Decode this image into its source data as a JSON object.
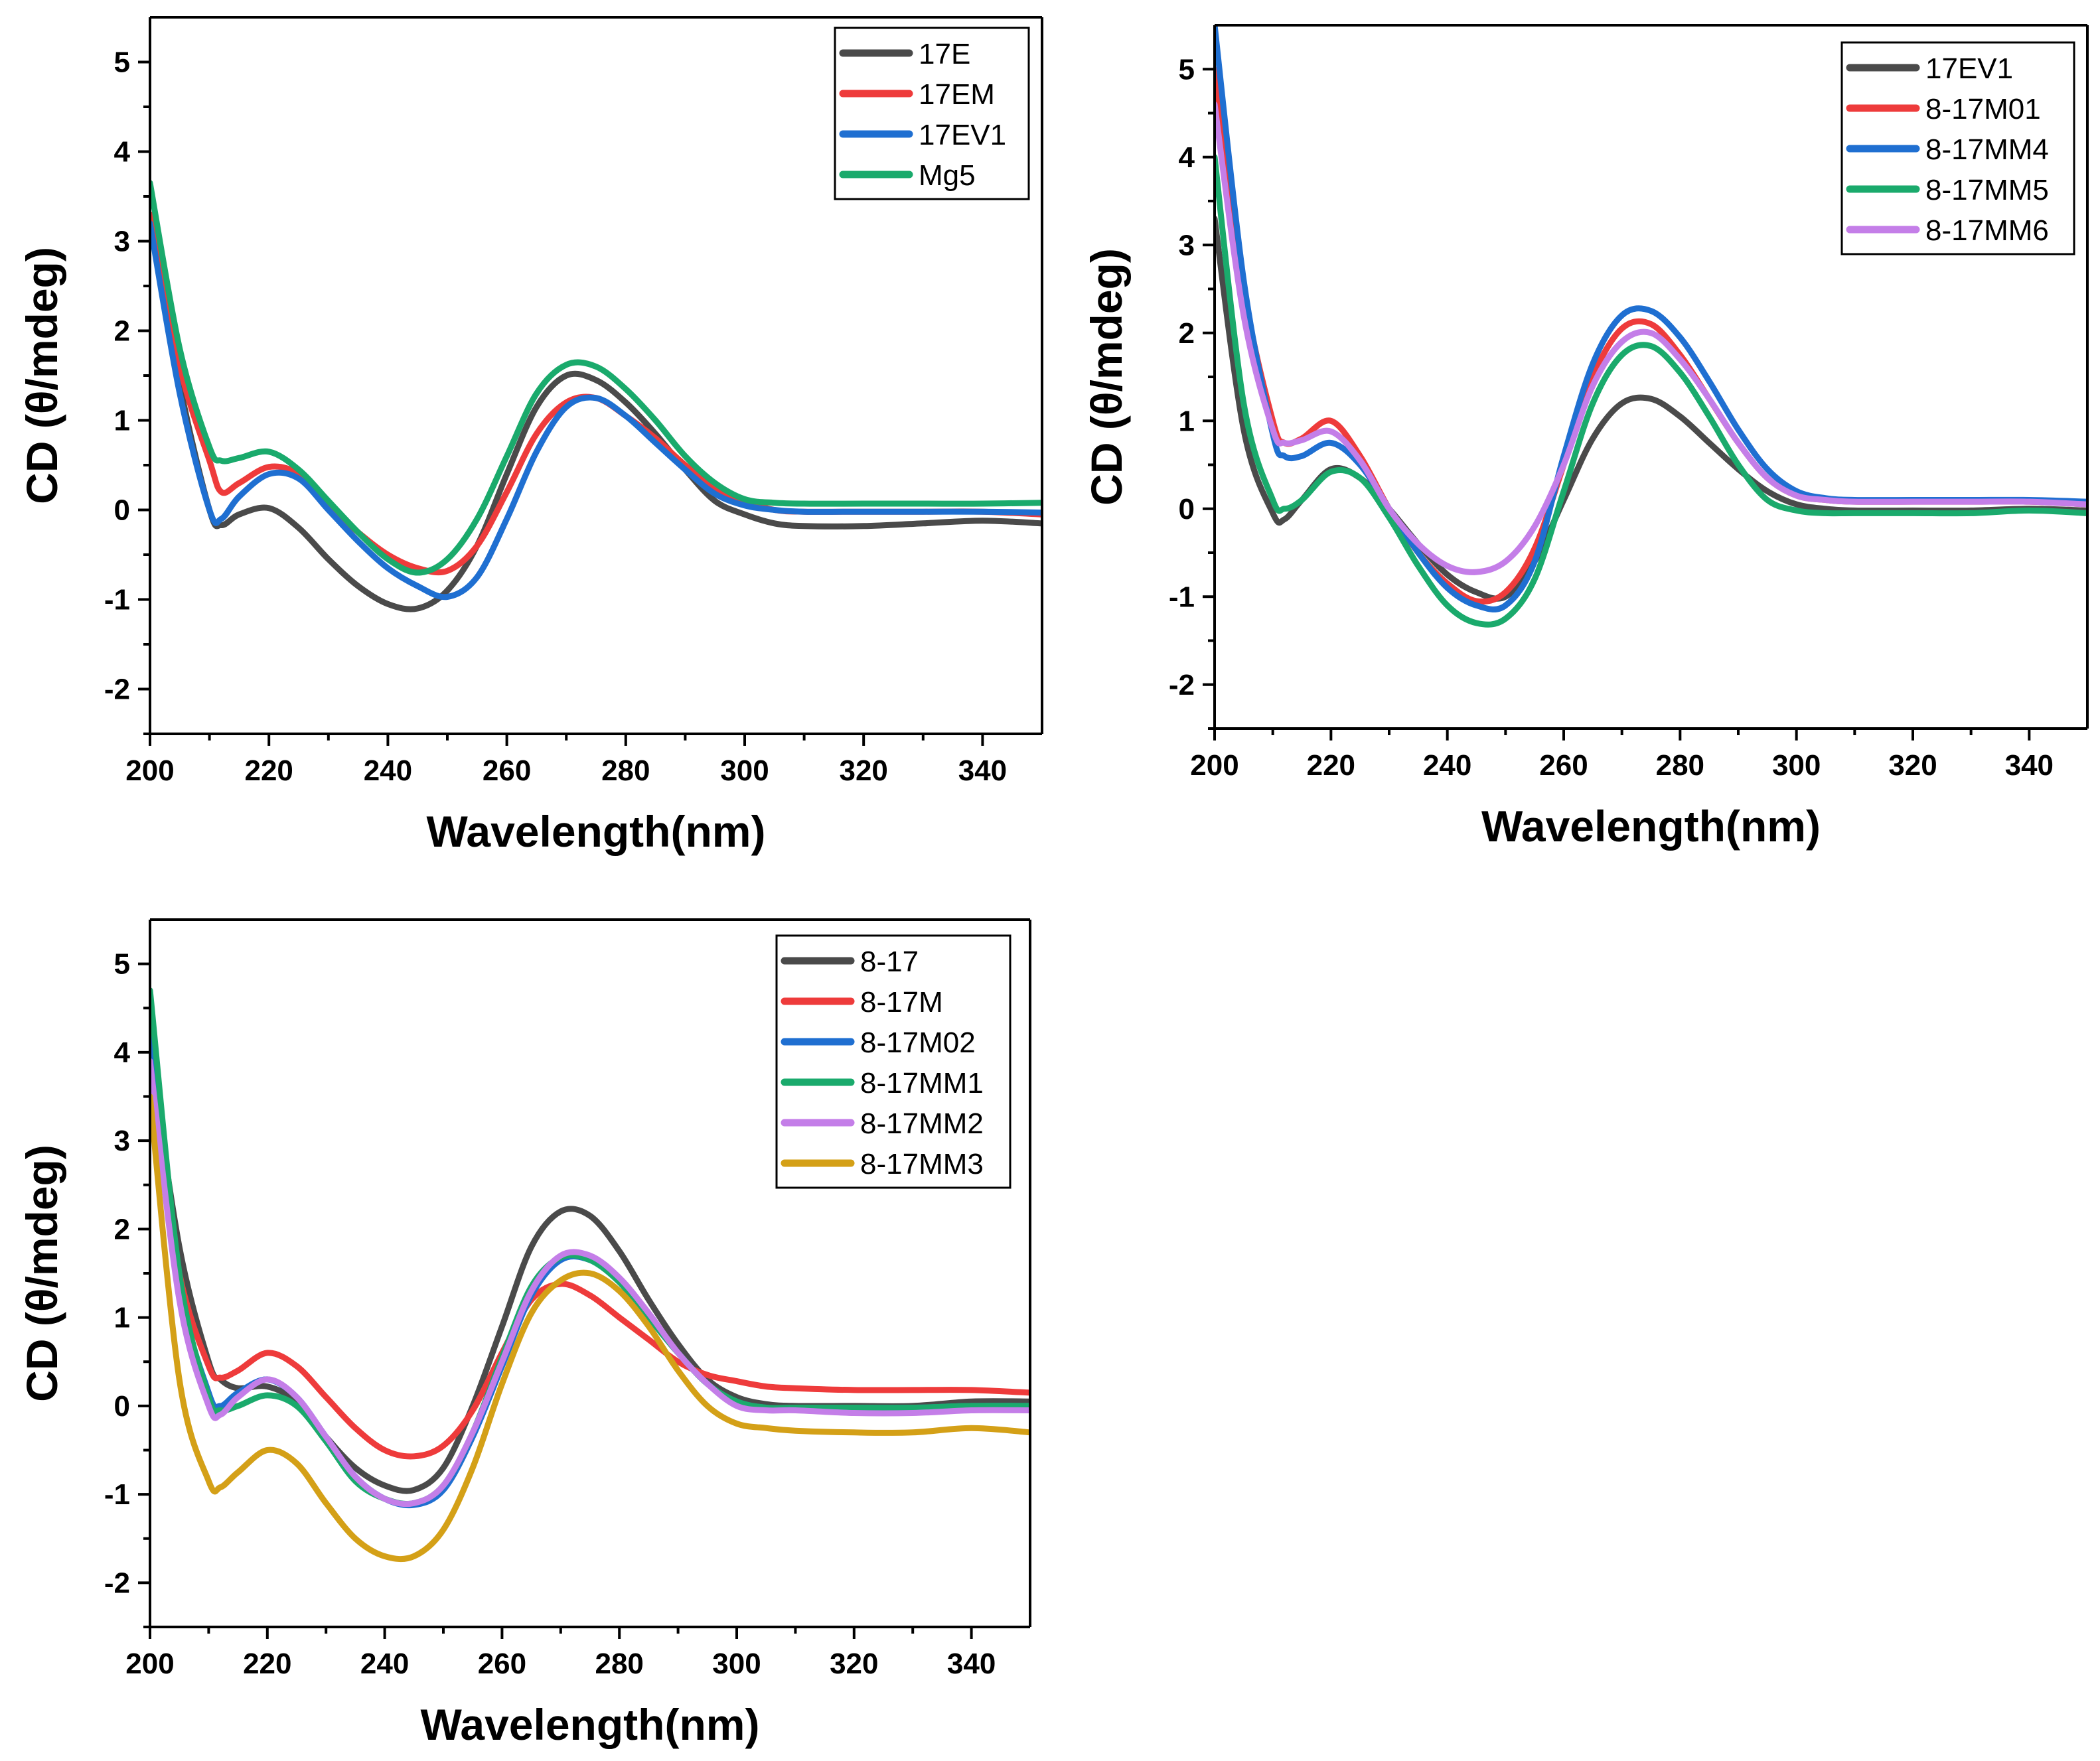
{
  "chart_data": [
    {
      "type": "line",
      "title": "",
      "xlabel": "Wavelength(nm)",
      "ylabel": "CD (θ/mdeg)",
      "xlim": [
        200,
        350
      ],
      "ylim": [
        -2.5,
        5.5
      ],
      "xticks": [
        200,
        220,
        240,
        260,
        280,
        300,
        320,
        340
      ],
      "yticks": [
        -2,
        -1,
        0,
        1,
        2,
        3,
        4,
        5
      ],
      "legend_position": "top-right",
      "x": [
        200,
        205,
        210,
        212,
        215,
        220,
        225,
        230,
        235,
        240,
        245,
        250,
        255,
        260,
        265,
        270,
        275,
        280,
        285,
        290,
        295,
        300,
        305,
        310,
        320,
        330,
        340,
        350
      ],
      "series": [
        {
          "name": "17E",
          "color": "#4a4a4a",
          "values": [
            3.3,
            1.4,
            0.0,
            -0.17,
            -0.05,
            0.02,
            -0.2,
            -0.55,
            -0.85,
            -1.05,
            -1.1,
            -0.9,
            -0.4,
            0.4,
            1.15,
            1.5,
            1.45,
            1.2,
            0.85,
            0.45,
            0.1,
            -0.05,
            -0.15,
            -0.18,
            -0.18,
            -0.15,
            -0.12,
            -0.15
          ]
        },
        {
          "name": "17EM",
          "color": "#ee3b3b",
          "values": [
            3.3,
            1.6,
            0.55,
            0.2,
            0.3,
            0.48,
            0.4,
            0.05,
            -0.25,
            -0.5,
            -0.65,
            -0.68,
            -0.4,
            0.2,
            0.85,
            1.2,
            1.25,
            1.05,
            0.8,
            0.5,
            0.25,
            0.1,
            0.0,
            -0.02,
            -0.02,
            -0.02,
            -0.02,
            -0.05
          ]
        },
        {
          "name": "17EV1",
          "color": "#1f6fd1",
          "values": [
            3.2,
            1.3,
            0.0,
            -0.1,
            0.15,
            0.4,
            0.35,
            0.0,
            -0.35,
            -0.65,
            -0.85,
            -0.97,
            -0.75,
            -0.1,
            0.65,
            1.15,
            1.25,
            1.05,
            0.75,
            0.45,
            0.18,
            0.05,
            0.0,
            -0.02,
            -0.02,
            -0.02,
            -0.02,
            -0.03
          ]
        },
        {
          "name": "Mg5",
          "color": "#1aaa6c",
          "values": [
            3.65,
            1.8,
            0.7,
            0.55,
            0.58,
            0.65,
            0.45,
            0.1,
            -0.25,
            -0.55,
            -0.7,
            -0.55,
            -0.1,
            0.6,
            1.3,
            1.62,
            1.6,
            1.35,
            1.0,
            0.6,
            0.3,
            0.12,
            0.08,
            0.07,
            0.07,
            0.07,
            0.07,
            0.08
          ]
        }
      ]
    },
    {
      "type": "line",
      "title": "",
      "xlabel": "Wavelength(nm)",
      "ylabel": "CD (θ/mdeg)",
      "xlim": [
        200,
        350
      ],
      "ylim": [
        -2.5,
        5.5
      ],
      "xticks": [
        200,
        220,
        240,
        260,
        280,
        300,
        320,
        340
      ],
      "yticks": [
        -2,
        -1,
        0,
        1,
        2,
        3,
        4,
        5
      ],
      "legend_position": "top-right",
      "x": [
        200,
        205,
        210,
        212,
        215,
        220,
        225,
        230,
        235,
        240,
        245,
        250,
        255,
        260,
        265,
        270,
        275,
        280,
        285,
        290,
        295,
        300,
        305,
        310,
        320,
        330,
        340,
        350
      ],
      "series": [
        {
          "name": "17EV1",
          "color": "#4a4a4a",
          "values": [
            3.3,
            0.9,
            -0.05,
            -0.12,
            0.1,
            0.45,
            0.35,
            0.0,
            -0.4,
            -0.75,
            -0.95,
            -1.0,
            -0.6,
            0.1,
            0.8,
            1.2,
            1.25,
            1.05,
            0.75,
            0.45,
            0.2,
            0.05,
            0.0,
            -0.02,
            -0.02,
            -0.02,
            0.0,
            -0.02
          ]
        },
        {
          "name": "8-17M01",
          "color": "#ee3b3b",
          "values": [
            5.0,
            2.5,
            1.0,
            0.75,
            0.8,
            1.0,
            0.6,
            0.0,
            -0.5,
            -0.85,
            -1.05,
            -0.95,
            -0.45,
            0.5,
            1.5,
            2.05,
            2.1,
            1.75,
            1.25,
            0.75,
            0.35,
            0.15,
            0.1,
            0.08,
            0.08,
            0.08,
            0.08,
            0.05
          ]
        },
        {
          "name": "8-17MM4",
          "color": "#1f6fd1",
          "values": [
            5.5,
            2.6,
            0.85,
            0.6,
            0.6,
            0.75,
            0.5,
            0.0,
            -0.5,
            -0.9,
            -1.1,
            -1.1,
            -0.6,
            0.6,
            1.65,
            2.2,
            2.25,
            1.95,
            1.45,
            0.9,
            0.45,
            0.2,
            0.12,
            0.1,
            0.1,
            0.1,
            0.1,
            0.08
          ]
        },
        {
          "name": "8-17MM5",
          "color": "#1aaa6c",
          "values": [
            4.0,
            1.2,
            0.1,
            0.0,
            0.1,
            0.42,
            0.35,
            -0.1,
            -0.65,
            -1.1,
            -1.3,
            -1.25,
            -0.8,
            0.2,
            1.2,
            1.75,
            1.85,
            1.55,
            1.05,
            0.5,
            0.1,
            -0.02,
            -0.05,
            -0.05,
            -0.05,
            -0.05,
            -0.02,
            -0.05
          ]
        },
        {
          "name": "8-17MM6",
          "color": "#c47ee8",
          "values": [
            4.6,
            2.2,
            0.9,
            0.75,
            0.78,
            0.88,
            0.55,
            0.0,
            -0.4,
            -0.65,
            -0.72,
            -0.6,
            -0.2,
            0.5,
            1.4,
            1.9,
            2.0,
            1.7,
            1.25,
            0.75,
            0.35,
            0.15,
            0.1,
            0.08,
            0.08,
            0.08,
            0.08,
            0.05
          ]
        }
      ]
    },
    {
      "type": "line",
      "title": "",
      "xlabel": "Wavelength(nm)",
      "ylabel": "CD (θ/mdeg)",
      "xlim": [
        200,
        350
      ],
      "ylim": [
        -2.5,
        5.5
      ],
      "xticks": [
        200,
        220,
        240,
        260,
        280,
        300,
        320,
        340
      ],
      "yticks": [
        -2,
        -1,
        0,
        1,
        2,
        3,
        4,
        5
      ],
      "legend_position": "top-right",
      "x": [
        200,
        205,
        210,
        212,
        215,
        220,
        225,
        230,
        235,
        240,
        245,
        250,
        255,
        260,
        265,
        270,
        275,
        280,
        285,
        290,
        295,
        300,
        305,
        310,
        320,
        330,
        340,
        350
      ],
      "series": [
        {
          "name": "8-17",
          "color": "#4a4a4a",
          "values": [
            4.0,
            1.8,
            0.5,
            0.3,
            0.2,
            0.22,
            0.05,
            -0.35,
            -0.7,
            -0.9,
            -0.95,
            -0.7,
            0.0,
            0.9,
            1.8,
            2.2,
            2.15,
            1.75,
            1.2,
            0.7,
            0.3,
            0.1,
            0.02,
            0.0,
            0.0,
            0.0,
            0.05,
            0.05
          ]
        },
        {
          "name": "8-17M",
          "color": "#ee3b3b",
          "values": [
            3.6,
            1.5,
            0.45,
            0.32,
            0.4,
            0.6,
            0.45,
            0.1,
            -0.25,
            -0.5,
            -0.57,
            -0.45,
            -0.05,
            0.6,
            1.2,
            1.38,
            1.25,
            1.0,
            0.75,
            0.5,
            0.35,
            0.28,
            0.22,
            0.2,
            0.18,
            0.18,
            0.18,
            0.15
          ]
        },
        {
          "name": "8-17M02",
          "color": "#1f6fd1",
          "values": [
            4.2,
            1.4,
            0.15,
            0.0,
            0.15,
            0.3,
            0.1,
            -0.35,
            -0.8,
            -1.05,
            -1.12,
            -0.95,
            -0.35,
            0.45,
            1.25,
            1.65,
            1.65,
            1.4,
            1.0,
            0.6,
            0.25,
            0.05,
            -0.02,
            -0.02,
            -0.02,
            -0.02,
            0.0,
            0.0
          ]
        },
        {
          "name": "8-17MM1",
          "color": "#1aaa6c",
          "values": [
            4.7,
            1.5,
            0.1,
            -0.05,
            0.0,
            0.12,
            0.0,
            -0.4,
            -0.85,
            -1.05,
            -1.1,
            -0.9,
            -0.3,
            0.55,
            1.35,
            1.68,
            1.65,
            1.4,
            1.0,
            0.6,
            0.25,
            0.05,
            -0.02,
            -0.02,
            -0.02,
            -0.02,
            0.0,
            0.0
          ]
        },
        {
          "name": "8-17MM2",
          "color": "#c47ee8",
          "values": [
            3.9,
            1.2,
            0.0,
            -0.1,
            0.1,
            0.3,
            0.1,
            -0.35,
            -0.8,
            -1.05,
            -1.1,
            -0.9,
            -0.3,
            0.5,
            1.3,
            1.7,
            1.7,
            1.45,
            1.05,
            0.6,
            0.25,
            0.0,
            -0.05,
            -0.05,
            -0.08,
            -0.08,
            -0.05,
            -0.05
          ]
        },
        {
          "name": "8-17MM3",
          "color": "#d4a017",
          "values": [
            3.5,
            0.3,
            -0.85,
            -0.92,
            -0.75,
            -0.5,
            -0.65,
            -1.1,
            -1.5,
            -1.7,
            -1.7,
            -1.4,
            -0.7,
            0.25,
            1.05,
            1.42,
            1.5,
            1.3,
            0.9,
            0.4,
            0.0,
            -0.2,
            -0.25,
            -0.28,
            -0.3,
            -0.3,
            -0.25,
            -0.3
          ]
        }
      ]
    }
  ]
}
